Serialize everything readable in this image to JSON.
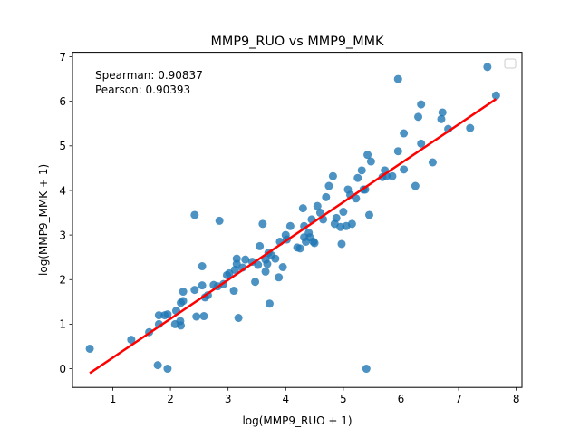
{
  "chart_data": {
    "type": "scatter",
    "title": "MMP9_RUO vs MMP9_MMK",
    "xlabel": "log(MMP9_RUO + 1)",
    "ylabel": "log(MMP9_MMK + 1)",
    "xlim": [
      0.3,
      8.1
    ],
    "ylim": [
      -0.42,
      7.1
    ],
    "xticks": [
      "1",
      "2",
      "3",
      "4",
      "5",
      "6",
      "7",
      "8"
    ],
    "yticks": [
      "0",
      "1",
      "2",
      "3",
      "4",
      "5",
      "6",
      "7"
    ],
    "annotations": [
      "Spearman: 0.90837",
      "Pearson: 0.90393"
    ],
    "legend": {
      "placement": "top-right",
      "entries": []
    },
    "grid": false,
    "colors": {
      "points": "#1f77b4",
      "fit_line": "#ff0000"
    },
    "fit_line": {
      "x": [
        0.6,
        7.65
      ],
      "y": [
        -0.1,
        6.05
      ]
    },
    "points": [
      {
        "x": 0.6,
        "y": 0.45
      },
      {
        "x": 1.32,
        "y": 0.65
      },
      {
        "x": 1.63,
        "y": 0.82
      },
      {
        "x": 1.8,
        "y": 1.0
      },
      {
        "x": 1.8,
        "y": 1.2
      },
      {
        "x": 1.9,
        "y": 1.2
      },
      {
        "x": 1.95,
        "y": 1.22
      },
      {
        "x": 2.08,
        "y": 1.0
      },
      {
        "x": 2.1,
        "y": 1.3
      },
      {
        "x": 2.17,
        "y": 1.07
      },
      {
        "x": 2.18,
        "y": 0.97
      },
      {
        "x": 2.18,
        "y": 1.48
      },
      {
        "x": 2.22,
        "y": 1.52
      },
      {
        "x": 2.22,
        "y": 1.73
      },
      {
        "x": 2.42,
        "y": 1.77
      },
      {
        "x": 2.45,
        "y": 1.17
      },
      {
        "x": 2.55,
        "y": 1.87
      },
      {
        "x": 2.55,
        "y": 2.3
      },
      {
        "x": 2.58,
        "y": 1.18
      },
      {
        "x": 2.6,
        "y": 1.6
      },
      {
        "x": 2.65,
        "y": 1.65
      },
      {
        "x": 2.75,
        "y": 1.88
      },
      {
        "x": 2.82,
        "y": 1.85
      },
      {
        "x": 2.92,
        "y": 1.9
      },
      {
        "x": 2.98,
        "y": 2.1
      },
      {
        "x": 3.02,
        "y": 2.14
      },
      {
        "x": 3.1,
        "y": 1.75
      },
      {
        "x": 3.12,
        "y": 2.22
      },
      {
        "x": 3.15,
        "y": 2.35
      },
      {
        "x": 3.15,
        "y": 2.47
      },
      {
        "x": 3.18,
        "y": 1.14
      },
      {
        "x": 3.25,
        "y": 2.27
      },
      {
        "x": 3.3,
        "y": 2.45
      },
      {
        "x": 3.42,
        "y": 2.4
      },
      {
        "x": 3.47,
        "y": 1.95
      },
      {
        "x": 3.52,
        "y": 2.33
      },
      {
        "x": 3.55,
        "y": 2.75
      },
      {
        "x": 3.6,
        "y": 3.25
      },
      {
        "x": 3.65,
        "y": 2.45
      },
      {
        "x": 3.65,
        "y": 2.18
      },
      {
        "x": 3.68,
        "y": 2.35
      },
      {
        "x": 3.7,
        "y": 2.6
      },
      {
        "x": 3.72,
        "y": 1.46
      },
      {
        "x": 3.75,
        "y": 2.55
      },
      {
        "x": 3.82,
        "y": 2.47
      },
      {
        "x": 3.88,
        "y": 2.05
      },
      {
        "x": 3.9,
        "y": 2.85
      },
      {
        "x": 3.95,
        "y": 2.28
      },
      {
        "x": 4.0,
        "y": 3.0
      },
      {
        "x": 4.02,
        "y": 2.9
      },
      {
        "x": 4.08,
        "y": 3.2
      },
      {
        "x": 4.2,
        "y": 2.72
      },
      {
        "x": 4.25,
        "y": 2.7
      },
      {
        "x": 4.3,
        "y": 3.6
      },
      {
        "x": 4.32,
        "y": 2.95
      },
      {
        "x": 4.32,
        "y": 3.2
      },
      {
        "x": 4.35,
        "y": 2.85
      },
      {
        "x": 4.4,
        "y": 3.05
      },
      {
        "x": 4.42,
        "y": 2.95
      },
      {
        "x": 4.45,
        "y": 3.35
      },
      {
        "x": 4.48,
        "y": 2.85
      },
      {
        "x": 4.5,
        "y": 2.82
      },
      {
        "x": 4.55,
        "y": 3.65
      },
      {
        "x": 4.6,
        "y": 3.5
      },
      {
        "x": 4.65,
        "y": 3.35
      },
      {
        "x": 4.7,
        "y": 3.85
      },
      {
        "x": 4.75,
        "y": 4.1
      },
      {
        "x": 4.82,
        "y": 4.32
      },
      {
        "x": 4.85,
        "y": 3.25
      },
      {
        "x": 4.88,
        "y": 3.38
      },
      {
        "x": 4.95,
        "y": 3.18
      },
      {
        "x": 4.97,
        "y": 2.8
      },
      {
        "x": 5.0,
        "y": 3.52
      },
      {
        "x": 5.05,
        "y": 3.2
      },
      {
        "x": 5.08,
        "y": 4.02
      },
      {
        "x": 5.12,
        "y": 3.9
      },
      {
        "x": 5.15,
        "y": 3.25
      },
      {
        "x": 5.22,
        "y": 3.82
      },
      {
        "x": 5.25,
        "y": 4.28
      },
      {
        "x": 5.32,
        "y": 4.45
      },
      {
        "x": 5.35,
        "y": 4.02
      },
      {
        "x": 5.38,
        "y": 4.02
      },
      {
        "x": 5.4,
        "y": 0.0
      },
      {
        "x": 5.42,
        "y": 4.8
      },
      {
        "x": 5.45,
        "y": 3.45
      },
      {
        "x": 5.48,
        "y": 4.65
      },
      {
        "x": 5.68,
        "y": 4.3
      },
      {
        "x": 5.72,
        "y": 4.45
      },
      {
        "x": 5.75,
        "y": 4.32
      },
      {
        "x": 5.85,
        "y": 4.32
      },
      {
        "x": 5.95,
        "y": 6.5
      },
      {
        "x": 5.95,
        "y": 4.88
      },
      {
        "x": 6.05,
        "y": 5.28
      },
      {
        "x": 6.05,
        "y": 4.47
      },
      {
        "x": 6.25,
        "y": 4.1
      },
      {
        "x": 6.3,
        "y": 5.65
      },
      {
        "x": 6.35,
        "y": 5.93
      },
      {
        "x": 6.35,
        "y": 5.05
      },
      {
        "x": 6.55,
        "y": 4.63
      },
      {
        "x": 6.7,
        "y": 5.6
      },
      {
        "x": 6.72,
        "y": 5.75
      },
      {
        "x": 6.82,
        "y": 5.38
      },
      {
        "x": 7.2,
        "y": 5.4
      },
      {
        "x": 7.5,
        "y": 6.77
      },
      {
        "x": 7.65,
        "y": 6.13
      },
      {
        "x": 1.78,
        "y": 0.08
      },
      {
        "x": 1.95,
        "y": 0.0
      },
      {
        "x": 2.42,
        "y": 3.45
      },
      {
        "x": 2.85,
        "y": 3.32
      }
    ]
  }
}
